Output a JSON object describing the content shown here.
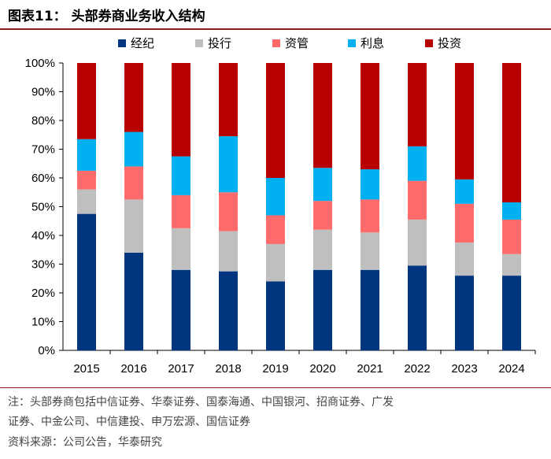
{
  "title": "图表11：  头部券商业务收入结构",
  "chart_data": {
    "type": "bar",
    "stacked": true,
    "categories": [
      "2015",
      "2016",
      "2017",
      "2018",
      "2019",
      "2020",
      "2021",
      "2022",
      "2023",
      "2024"
    ],
    "series": [
      {
        "name": "经纪",
        "color": "#003580",
        "values": [
          47.5,
          34,
          28,
          27.5,
          24,
          28,
          28,
          29.5,
          26,
          26
        ]
      },
      {
        "name": "投行",
        "color": "#bfbfbf",
        "values": [
          8.5,
          18.5,
          14.5,
          14,
          13,
          14,
          13,
          16,
          11.5,
          7.5
        ]
      },
      {
        "name": "资管",
        "color": "#ff6b6b",
        "values": [
          6.5,
          11.5,
          11.5,
          13.5,
          10,
          10,
          11.5,
          13.5,
          13.5,
          12
        ]
      },
      {
        "name": "利息",
        "color": "#00b0f0",
        "values": [
          11,
          12,
          13.5,
          19.5,
          13,
          11.5,
          10.5,
          12,
          8.5,
          6
        ]
      },
      {
        "name": "投资",
        "color": "#b80000",
        "values": [
          26.5,
          24,
          32.5,
          25.5,
          40,
          36.5,
          37,
          29,
          40.5,
          48.5
        ]
      }
    ],
    "ylim": [
      0,
      100
    ],
    "yticks": [
      "0%",
      "10%",
      "20%",
      "30%",
      "40%",
      "50%",
      "60%",
      "70%",
      "80%",
      "90%",
      "100%"
    ],
    "legend_position": "top",
    "grid": false
  },
  "notes": [
    "注：头部券商包括中信证券、华泰证券、国泰海通、中国银河、招商证券、广发",
    "证券、中金公司、中信建投、申万宏源、国信证券",
    "资料来源：公司公告，华泰研究"
  ]
}
